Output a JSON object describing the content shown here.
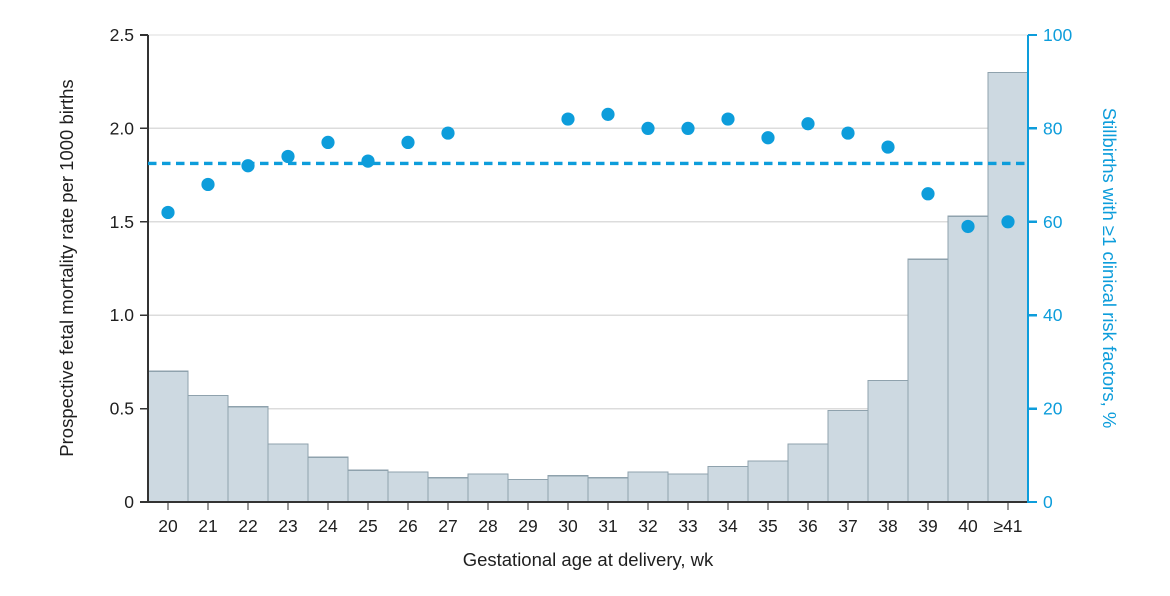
{
  "figure": {
    "background_color": "#ffffff"
  },
  "chart_data": {
    "type": "bar+scatter-dual-axis",
    "title": "",
    "xlabel": "Gestational age at delivery, wk",
    "ylabel_left": "Prospective fetal mortality rate per 1000 births",
    "ylabel_right": "Stillbirths with ≥1 clinical risk factors, %",
    "categories": [
      "20",
      "21",
      "22",
      "23",
      "24",
      "25",
      "26",
      "27",
      "28",
      "29",
      "30",
      "31",
      "32",
      "33",
      "34",
      "35",
      "36",
      "37",
      "38",
      "39",
      "40",
      "≥41"
    ],
    "series": [
      {
        "name": "Prospective fetal mortality rate per 1000 births",
        "type": "bar",
        "axis": "left",
        "values": [
          0.7,
          0.57,
          0.51,
          0.31,
          0.24,
          0.17,
          0.16,
          0.13,
          0.15,
          0.12,
          0.14,
          0.13,
          0.16,
          0.15,
          0.19,
          0.22,
          0.31,
          0.49,
          0.65,
          1.3,
          1.53,
          2.3
        ]
      },
      {
        "name": "Stillbirths with ≥1 clinical risk factors, %",
        "type": "scatter",
        "axis": "right",
        "values": [
          62,
          68,
          72,
          74,
          77,
          73,
          77,
          79,
          null,
          null,
          82,
          83,
          80,
          80,
          82,
          78,
          81,
          79,
          76,
          66,
          59,
          60
        ]
      }
    ],
    "reference_line": {
      "axis": "right",
      "value": 72.5,
      "style": "dashed"
    },
    "ylim_left": [
      0,
      2.5
    ],
    "yticks_left": [
      "2.5",
      "2.0",
      "1.5",
      "1.0",
      "0.5",
      "0"
    ],
    "ylim_right": [
      0,
      100
    ],
    "yticks_right": [
      "100",
      "80",
      "60",
      "40",
      "20",
      "0"
    ],
    "grid": true,
    "legend": false,
    "colors": {
      "accent_blue": "#0d9ddb",
      "bar_fill": "#cdd9e1",
      "bar_border": "#8fa2ad",
      "gridline": "#dcdcdc",
      "axis_dark": "#333333"
    }
  }
}
